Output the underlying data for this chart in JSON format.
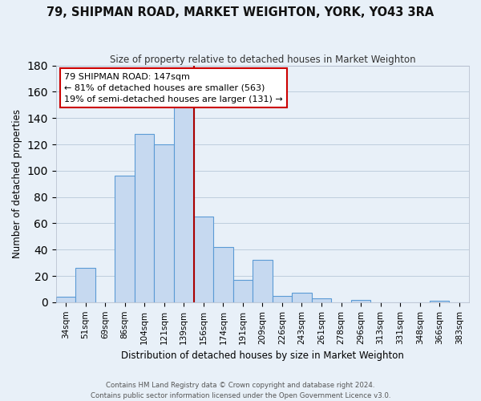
{
  "title": "79, SHIPMAN ROAD, MARKET WEIGHTON, YORK, YO43 3RA",
  "subtitle": "Size of property relative to detached houses in Market Weighton",
  "xlabel": "Distribution of detached houses by size in Market Weighton",
  "ylabel": "Number of detached properties",
  "footer_line1": "Contains HM Land Registry data © Crown copyright and database right 2024.",
  "footer_line2": "Contains public sector information licensed under the Open Government Licence v3.0.",
  "bin_labels": [
    "34sqm",
    "51sqm",
    "69sqm",
    "86sqm",
    "104sqm",
    "121sqm",
    "139sqm",
    "156sqm",
    "174sqm",
    "191sqm",
    "209sqm",
    "226sqm",
    "243sqm",
    "261sqm",
    "278sqm",
    "296sqm",
    "313sqm",
    "331sqm",
    "348sqm",
    "366sqm",
    "383sqm"
  ],
  "bar_heights": [
    4,
    26,
    0,
    96,
    128,
    120,
    150,
    65,
    42,
    17,
    32,
    5,
    7,
    3,
    0,
    2,
    0,
    0,
    0,
    1,
    0
  ],
  "bar_color": "#c6d9f0",
  "bar_edge_color": "#5b9bd5",
  "vline_color": "#aa0000",
  "annotation_title": "79 SHIPMAN ROAD: 147sqm",
  "annotation_line1": "← 81% of detached houses are smaller (563)",
  "annotation_line2": "19% of semi-detached houses are larger (131) →",
  "annotation_box_color": "#ffffff",
  "annotation_box_edge": "#cc0000",
  "bg_color": "#e8f0f8",
  "ylim": [
    0,
    180
  ],
  "yticks": [
    0,
    20,
    40,
    60,
    80,
    100,
    120,
    140,
    160,
    180
  ]
}
